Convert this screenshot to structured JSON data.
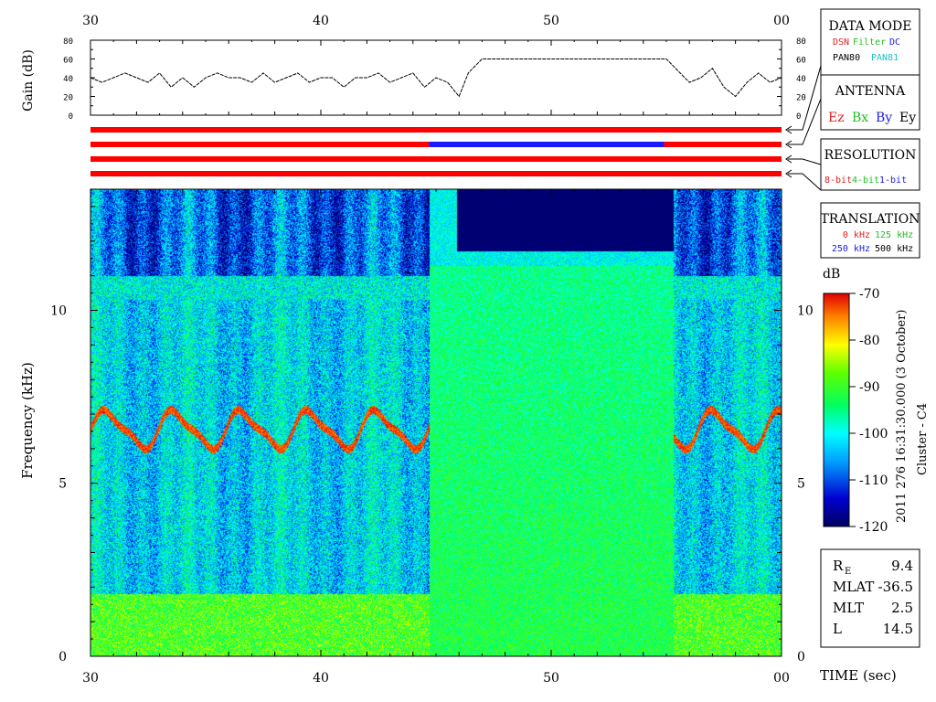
{
  "chart_data": [
    {
      "type": "line",
      "title": "",
      "ylabel": "Gain (dB)",
      "xlim": [
        30,
        60
      ],
      "x_ticks": [
        "30",
        "40",
        "50",
        "00"
      ],
      "ylim": [
        0,
        80
      ],
      "y_ticks": [
        "0",
        "20",
        "40",
        "60",
        "80"
      ],
      "x": [
        30.0,
        30.5,
        31.0,
        31.5,
        32.0,
        32.5,
        33.0,
        33.5,
        34.0,
        34.5,
        35.0,
        35.5,
        36.0,
        36.5,
        37.0,
        37.5,
        38.0,
        38.5,
        39.0,
        39.5,
        40.0,
        40.5,
        41.0,
        41.5,
        42.0,
        42.5,
        43.0,
        43.5,
        44.0,
        44.5,
        45.0,
        45.5,
        46.0,
        46.4,
        47.0,
        50.0,
        54.0,
        55.0,
        55.6,
        56.0,
        56.5,
        57.0,
        57.5,
        58.0,
        58.5,
        59.0,
        59.5,
        60.0
      ],
      "values": [
        40,
        35,
        40,
        45,
        40,
        35,
        45,
        30,
        40,
        30,
        40,
        45,
        40,
        40,
        35,
        45,
        35,
        40,
        45,
        35,
        40,
        40,
        30,
        40,
        40,
        45,
        35,
        40,
        45,
        30,
        40,
        35,
        20,
        45,
        60,
        60,
        60,
        60,
        45,
        35,
        40,
        50,
        30,
        20,
        35,
        45,
        35,
        40
      ],
      "series": [
        {
          "values_note": "single gain trace"
        }
      ]
    },
    {
      "type": "heatmap",
      "title": "",
      "xlabel": "TIME (sec)",
      "ylabel": "Frequency (kHz)",
      "xlim": [
        30,
        60
      ],
      "x_ticks": [
        "30",
        "40",
        "50",
        "00"
      ],
      "ylim": [
        0,
        13.5
      ],
      "y_ticks": [
        "0",
        "5",
        "10"
      ],
      "colorbar": {
        "label": "dB",
        "range": [
          -120,
          -70
        ],
        "ticks": [
          "-70",
          "-80",
          "-90",
          "-100",
          "-110",
          "-120"
        ]
      },
      "features": {
        "hiss_band_khz": [
          0,
          1.8
        ],
        "chorus_line_khz": [
          6.0,
          7.2
        ],
        "high_res_gap_sec": [
          44.7,
          55.3
        ],
        "quiet_top_khz": [
          11.3,
          13.5
        ]
      }
    }
  ],
  "data_mode": {
    "title": "DATA MODE",
    "row1": [
      {
        "text": "DSN",
        "color": "#e02020"
      },
      {
        "text": "Filter",
        "color": "#20c020"
      },
      {
        "text": "DC",
        "color": "#2020e0"
      }
    ],
    "row2": [
      {
        "text": "PAN80",
        "color": "#000000"
      },
      {
        "text": "PAN81",
        "color": "#20c0c0"
      }
    ]
  },
  "antenna": {
    "title": "ANTENNA",
    "items": [
      {
        "text": "Ez",
        "color": "#e02020"
      },
      {
        "text": "Bx",
        "color": "#20c020"
      },
      {
        "text": "By",
        "color": "#2020e0"
      },
      {
        "text": "Ey",
        "color": "#000000"
      }
    ]
  },
  "resolution": {
    "title": "RESOLUTION",
    "items": [
      {
        "text": "8-bit",
        "color": "#e02020"
      },
      {
        "text": "4-bit",
        "color": "#20c020"
      },
      {
        "text": "1-bit",
        "color": "#2020e0"
      }
    ]
  },
  "translation": {
    "title": "TRANSLATION",
    "row1": [
      {
        "text": "0 kHz",
        "color": "#e02020"
      },
      {
        "text": "125 kHz",
        "color": "#20c020"
      }
    ],
    "row2": [
      {
        "text": "250 kHz",
        "color": "#2020e0"
      },
      {
        "text": "500 kHz",
        "color": "#000000"
      }
    ]
  },
  "status_bars": [
    {
      "segments": [
        {
          "from": 30,
          "to": 60,
          "color": "#ff0000"
        }
      ]
    },
    {
      "segments": [
        {
          "from": 30,
          "to": 44.7,
          "color": "#ff0000"
        },
        {
          "from": 44.7,
          "to": 54.9,
          "color": "#1a1aff"
        },
        {
          "from": 54.9,
          "to": 60,
          "color": "#ff0000"
        }
      ]
    },
    {
      "segments": [
        {
          "from": 30,
          "to": 60,
          "color": "#ff0000"
        }
      ]
    },
    {
      "segments": [
        {
          "from": 30,
          "to": 60,
          "color": "#ff0000"
        }
      ]
    }
  ],
  "side_caption": {
    "line1": "2011 276 16:31:30.000 (3 October)",
    "line2": "Cluster - C4"
  },
  "orbit": {
    "rows": [
      {
        "label": "R",
        "sub": "E",
        "value": "9.4"
      },
      {
        "label": "MLAT",
        "sub": "",
        "value": "-36.5"
      },
      {
        "label": "MLT",
        "sub": "",
        "value": "2.5"
      },
      {
        "label": "L",
        "sub": "",
        "value": "14.5"
      }
    ]
  },
  "colors": {
    "background": "#ffffff",
    "bar_red": "#ff0000",
    "bar_blue": "#1a1aff"
  }
}
